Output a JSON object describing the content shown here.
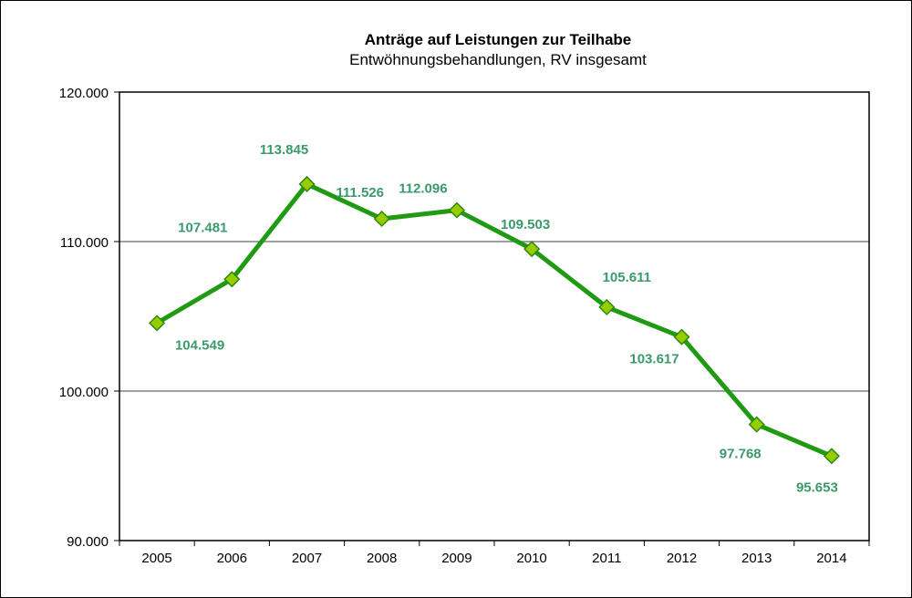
{
  "chart_data": {
    "type": "line",
    "title": "Anträge auf Leistungen zur Teilhabe",
    "subtitle": "Entwöhnungsbehandlungen, RV insgesamt",
    "categories": [
      "2005",
      "2006",
      "2007",
      "2008",
      "2009",
      "2010",
      "2011",
      "2012",
      "2013",
      "2014"
    ],
    "values": [
      104549,
      107481,
      113845,
      111526,
      112096,
      109503,
      105611,
      103617,
      97768,
      95653
    ],
    "data_labels": [
      "104.549",
      "107.481",
      "113.845",
      "111.526",
      "112.096",
      "109.503",
      "105.611",
      "103.617",
      "97.768",
      "95.653"
    ],
    "ylim": [
      90000,
      120000
    ],
    "yticks": [
      90000,
      100000,
      110000,
      120000
    ],
    "ytick_labels": [
      "90.000",
      "100.000",
      "110.000",
      "120.000"
    ],
    "grid": true,
    "legend": "none",
    "colors": {
      "line": "#1f9a12",
      "marker_fill": "#99cc00",
      "marker_stroke": "#2a8a10",
      "label": "#3b9a6b",
      "grid": "#808080"
    }
  }
}
